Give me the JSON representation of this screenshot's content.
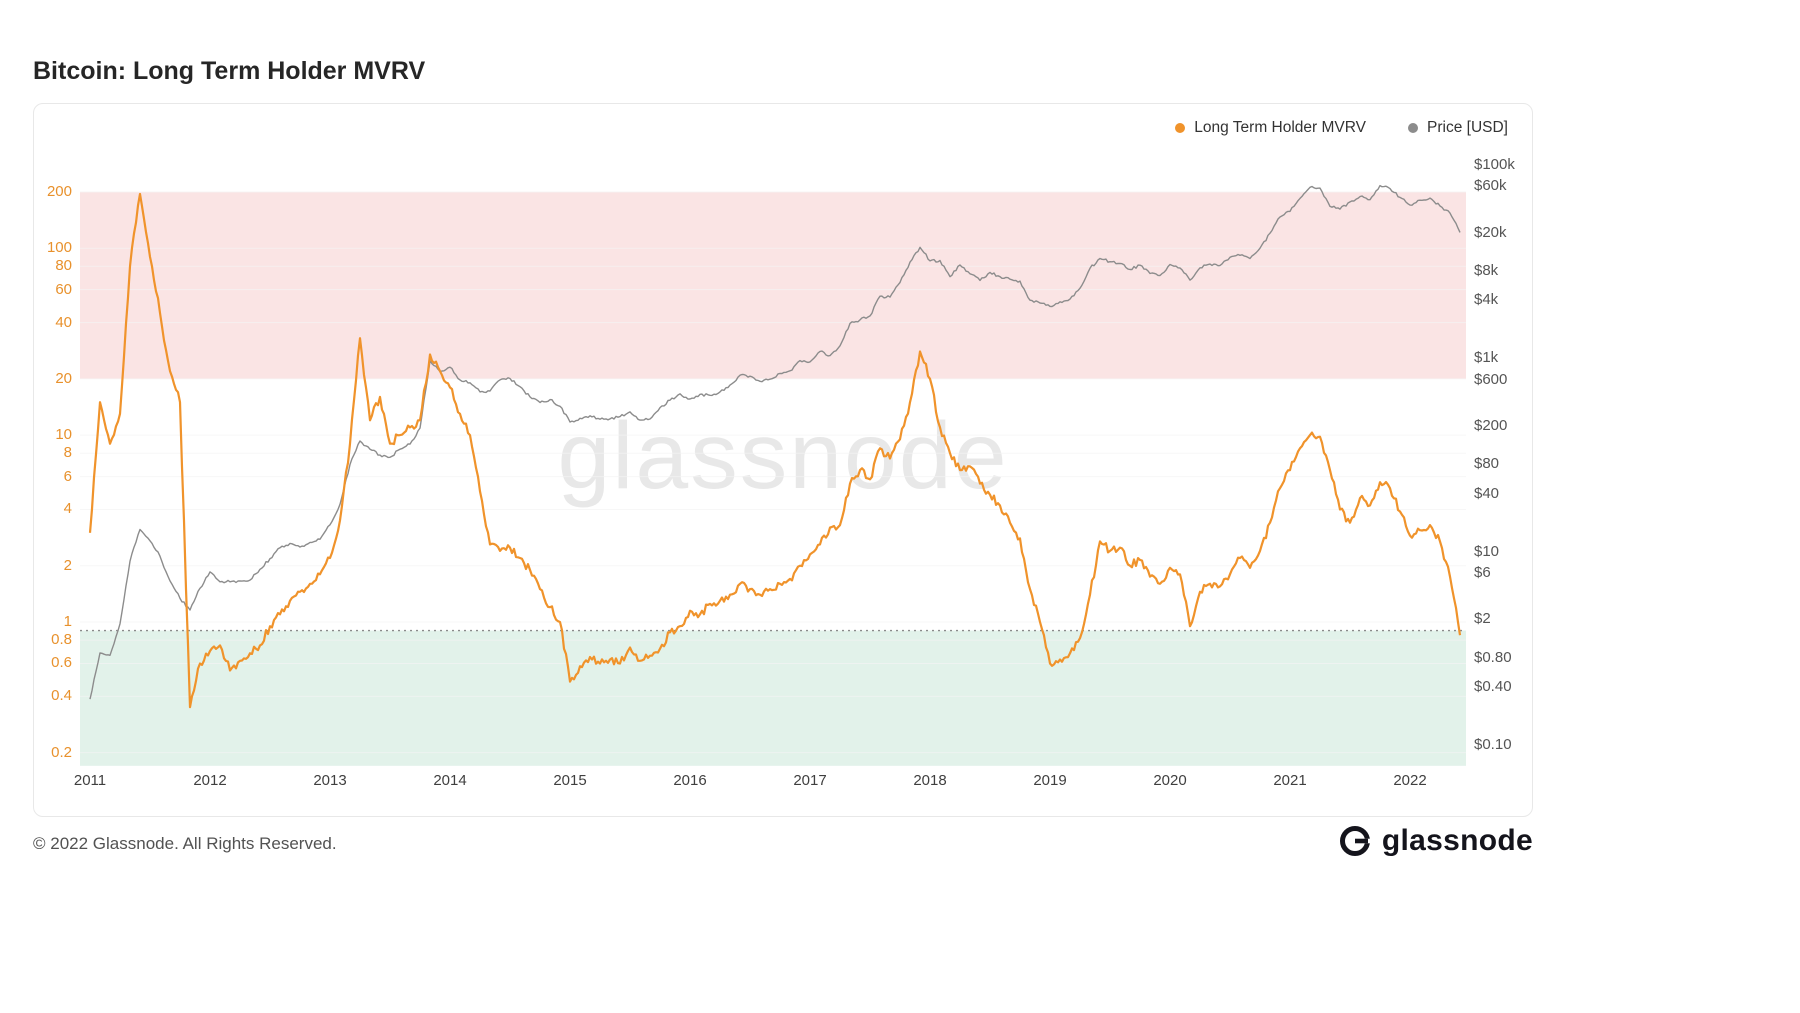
{
  "page": {
    "title": "Bitcoin: Long Term Holder MVRV",
    "footer": {
      "copyright": "© 2022 Glassnode. All Rights Reserved.",
      "brand": "glassnode"
    }
  },
  "watermark": "glassnode",
  "legend": [
    {
      "label": "Long Term Holder MVRV",
      "color": "#F0932B"
    },
    {
      "label": "Price [USD]",
      "color": "#8C8C8C"
    }
  ],
  "chart_data": {
    "type": "line",
    "title": "Bitcoin: Long Term Holder MVRV",
    "x_start_year": 2011,
    "x_resolution": "monthly",
    "x_axis_ticks": [
      "2011",
      "2012",
      "2013",
      "2014",
      "2015",
      "2016",
      "2017",
      "2018",
      "2019",
      "2020",
      "2021",
      "2022"
    ],
    "left_axis": {
      "name": "Long Term Holder MVRV",
      "scale": "log",
      "label_color": "#E8912C",
      "range": [
        0.17,
        336
      ],
      "ticks": [
        200,
        100,
        80,
        60,
        40,
        20,
        10,
        8,
        6,
        4,
        2,
        1,
        0.8,
        0.6,
        0.4,
        0.2
      ],
      "tick_labels": [
        "200",
        "100",
        "80",
        "60",
        "40",
        "20",
        "10",
        "8",
        "6",
        "4",
        "2",
        "1",
        "0.8",
        "0.6",
        "0.4",
        "0.2"
      ]
    },
    "right_axis": {
      "name": "Price [USD]",
      "scale": "log",
      "label_color": "#555555",
      "range": [
        0.06,
        143000
      ],
      "ticks": [
        100000,
        60000,
        20000,
        8000,
        4000,
        1000,
        600,
        200,
        80,
        40,
        10,
        6,
        2,
        0.8,
        0.4,
        0.1
      ],
      "tick_labels": [
        "$100k",
        "$60k",
        "$20k",
        "$8k",
        "$4k",
        "$1k",
        "$600",
        "$200",
        "$80",
        "$40",
        "$10",
        "$6",
        "$2",
        "$0.80",
        "$0.40",
        "$0.10"
      ]
    },
    "zones": [
      {
        "name": "overvaluation",
        "axis": "left",
        "from": 20,
        "to": 200,
        "color": "#FAE4E4"
      },
      {
        "name": "undervaluation",
        "axis": "left",
        "from": 0.17,
        "to": 0.9,
        "color": "#E2F2EA"
      }
    ],
    "threshold_line": {
      "axis": "left",
      "value": 0.9,
      "style": "dotted",
      "color": "#8A8A8A"
    },
    "grid": true,
    "legend_position": "top-right",
    "series": [
      {
        "name": "Long Term Holder MVRV",
        "axis": "left",
        "color": "#F0932B",
        "values": [
          3.0,
          15,
          9,
          13,
          80,
          195,
          90,
          45,
          22,
          15,
          0.35,
          0.6,
          0.7,
          0.75,
          0.55,
          0.62,
          0.68,
          0.75,
          0.95,
          1.1,
          1.3,
          1.45,
          1.6,
          1.8,
          2.2,
          3.5,
          9,
          33,
          12,
          16,
          9,
          10,
          11,
          12,
          27,
          22,
          18,
          13,
          10,
          5,
          2.6,
          2.4,
          2.5,
          2.2,
          1.9,
          1.5,
          1.2,
          1.0,
          0.48,
          0.58,
          0.65,
          0.6,
          0.63,
          0.6,
          0.73,
          0.62,
          0.66,
          0.72,
          0.88,
          0.95,
          1.15,
          1.1,
          1.25,
          1.3,
          1.4,
          1.6,
          1.5,
          1.4,
          1.5,
          1.6,
          1.7,
          2.0,
          2.3,
          2.6,
          3.2,
          3.3,
          5.5,
          6.5,
          5.8,
          8.5,
          7.5,
          9.5,
          15,
          28,
          20,
          11,
          8,
          6.5,
          6.8,
          5.5,
          4.8,
          4.2,
          3.4,
          2.8,
          1.5,
          1.0,
          0.6,
          0.63,
          0.68,
          0.82,
          1.4,
          2.7,
          2.4,
          2.5,
          2.0,
          2.15,
          1.75,
          1.6,
          1.95,
          1.8,
          0.95,
          1.45,
          1.6,
          1.55,
          1.8,
          2.2,
          1.95,
          2.4,
          3.4,
          5.2,
          6.5,
          8.5,
          10,
          9.8,
          6.5,
          4.0,
          3.4,
          4.6,
          4.2,
          5.6,
          5.2,
          3.9,
          2.9,
          3.1,
          3.3,
          2.7,
          1.75,
          0.85
        ]
      },
      {
        "name": "Price [USD]",
        "axis": "right",
        "color": "#8C8C8C",
        "values": [
          0.3,
          0.9,
          0.85,
          1.8,
          8,
          17,
          13,
          9,
          5,
          3.3,
          2.5,
          4.2,
          6.2,
          4.9,
          4.9,
          5.0,
          5.1,
          6.6,
          8.5,
          11,
          12.2,
          11.2,
          12.5,
          13.5,
          19,
          31,
          80,
          140,
          115,
          100,
          95,
          115,
          130,
          190,
          950,
          730,
          810,
          600,
          560,
          450,
          460,
          600,
          620,
          510,
          400,
          350,
          375,
          320,
          220,
          240,
          255,
          235,
          237,
          250,
          280,
          230,
          236,
          310,
          370,
          430,
          380,
          425,
          415,
          450,
          530,
          670,
          655,
          580,
          610,
          700,
          745,
          950,
          920,
          1180,
          1070,
          1350,
          2300,
          2500,
          2750,
          4400,
          4300,
          6100,
          9900,
          14100,
          10200,
          10300,
          7000,
          9250,
          7500,
          6400,
          7750,
          7000,
          6600,
          6300,
          4000,
          3740,
          3450,
          3850,
          4100,
          5320,
          8550,
          10800,
          10000,
          9600,
          8300,
          9200,
          7550,
          7200,
          9350,
          8600,
          6450,
          8650,
          9450,
          9140,
          11100,
          11650,
          10780,
          13800,
          19700,
          29000,
          33100,
          45100,
          58800,
          57700,
          37300,
          35000,
          41500,
          47100,
          43800,
          61300,
          57000,
          46200,
          38500,
          43200,
          45500,
          37700,
          31800,
          20100
        ]
      }
    ]
  }
}
